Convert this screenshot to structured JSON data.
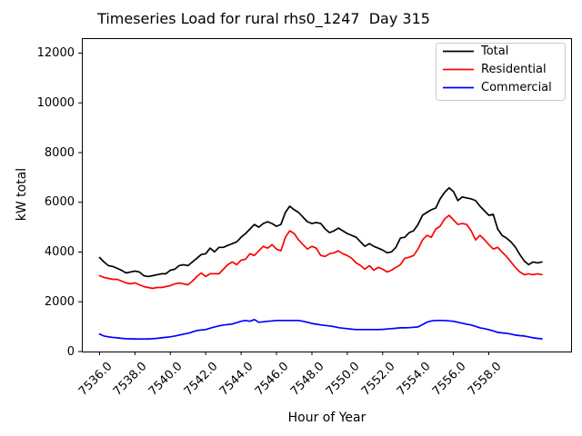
{
  "chart_data": {
    "type": "line",
    "title": "Timeseries Load for rural rhs0_1247  Day 315",
    "xlabel": "Hour of Year",
    "ylabel": "kW total",
    "xlim": [
      7535.0,
      7562.7
    ],
    "ylim": [
      0,
      12600
    ],
    "grid": false,
    "x_ticks": [
      7536,
      7538,
      7540,
      7542,
      7544,
      7546,
      7548,
      7550,
      7552,
      7554,
      7556,
      7558
    ],
    "x_tick_labels": [
      "7536.0",
      "7538.0",
      "7540.0",
      "7542.0",
      "7544.0",
      "7546.0",
      "7548.0",
      "7550.0",
      "7552.0",
      "7554.0",
      "7556.0",
      "7558.0"
    ],
    "y_ticks": [
      0,
      2000,
      4000,
      6000,
      8000,
      10000,
      12000
    ],
    "y_tick_labels": [
      "0",
      "2000",
      "4000",
      "6000",
      "8000",
      "10000",
      "12000"
    ],
    "legend": {
      "position": "upper right",
      "entries": [
        {
          "label": "Total",
          "color": "#000000"
        },
        {
          "label": "Residential",
          "color": "#ff0000"
        },
        {
          "label": "Commercial",
          "color": "#0000ff"
        }
      ]
    },
    "x": [
      7536.0,
      7536.25,
      7536.5,
      7536.75,
      7537.0,
      7537.25,
      7537.5,
      7537.75,
      7538.0,
      7538.25,
      7538.5,
      7538.75,
      7539.0,
      7539.25,
      7539.5,
      7539.75,
      7540.0,
      7540.25,
      7540.5,
      7540.75,
      7541.0,
      7541.25,
      7541.5,
      7541.75,
      7542.0,
      7542.25,
      7542.5,
      7542.75,
      7543.0,
      7543.25,
      7543.5,
      7543.75,
      7544.0,
      7544.25,
      7544.5,
      7544.75,
      7545.0,
      7545.25,
      7545.5,
      7545.75,
      7546.0,
      7546.25,
      7546.5,
      7546.75,
      7547.0,
      7547.25,
      7547.5,
      7547.75,
      7548.0,
      7548.25,
      7548.5,
      7548.75,
      7549.0,
      7549.25,
      7549.5,
      7549.75,
      7550.0,
      7550.25,
      7550.5,
      7550.75,
      7551.0,
      7551.25,
      7551.5,
      7551.75,
      7552.0,
      7552.25,
      7552.5,
      7552.75,
      7553.0,
      7553.25,
      7553.5,
      7553.75,
      7554.0,
      7554.25,
      7554.5,
      7554.75,
      7555.0,
      7555.25,
      7555.5,
      7555.75,
      7556.0,
      7556.25,
      7556.5,
      7556.75,
      7557.0,
      7557.25,
      7557.5,
      7557.75,
      7558.0,
      7558.25,
      7558.5,
      7558.75,
      7559.0,
      7559.25,
      7559.5,
      7559.75,
      7560.0,
      7560.25,
      7560.5,
      7560.75,
      7561.0
    ],
    "series": [
      {
        "name": "Total",
        "color": "#000000",
        "values": [
          3780,
          3600,
          3455,
          3420,
          3345,
          3260,
          3160,
          3200,
          3235,
          3200,
          3050,
          3015,
          3050,
          3090,
          3125,
          3125,
          3270,
          3310,
          3455,
          3490,
          3455,
          3600,
          3750,
          3900,
          3935,
          4155,
          4005,
          4190,
          4190,
          4265,
          4340,
          4410,
          4595,
          4745,
          4925,
          5110,
          5000,
          5145,
          5220,
          5145,
          5035,
          5110,
          5590,
          5845,
          5700,
          5590,
          5400,
          5220,
          5145,
          5185,
          5145,
          4925,
          4780,
          4855,
          4965,
          4855,
          4745,
          4670,
          4595,
          4410,
          4230,
          4340,
          4230,
          4155,
          4080,
          3970,
          4005,
          4190,
          4560,
          4595,
          4780,
          4855,
          5110,
          5480,
          5590,
          5700,
          5770,
          6140,
          6395,
          6580,
          6435,
          6065,
          6215,
          6175,
          6140,
          6065,
          5845,
          5660,
          5480,
          5515,
          4925,
          4670,
          4560,
          4410,
          4200,
          3900,
          3640,
          3490,
          3600,
          3565,
          3600
        ]
      },
      {
        "name": "Residential",
        "color": "#ff0000",
        "values": [
          3050,
          2980,
          2940,
          2905,
          2905,
          2830,
          2760,
          2720,
          2760,
          2685,
          2610,
          2575,
          2540,
          2575,
          2575,
          2610,
          2650,
          2720,
          2755,
          2720,
          2685,
          2830,
          3015,
          3160,
          3015,
          3125,
          3125,
          3125,
          3310,
          3490,
          3600,
          3490,
          3675,
          3710,
          3935,
          3860,
          4045,
          4230,
          4155,
          4300,
          4120,
          4045,
          4595,
          4855,
          4745,
          4485,
          4300,
          4120,
          4230,
          4155,
          3860,
          3825,
          3935,
          3970,
          4045,
          3935,
          3860,
          3750,
          3565,
          3455,
          3310,
          3455,
          3270,
          3385,
          3310,
          3200,
          3270,
          3385,
          3490,
          3750,
          3790,
          3860,
          4120,
          4485,
          4670,
          4595,
          4925,
          5035,
          5330,
          5480,
          5295,
          5110,
          5145,
          5110,
          4855,
          4485,
          4670,
          4500,
          4300,
          4120,
          4190,
          4000,
          3820,
          3600,
          3385,
          3200,
          3090,
          3125,
          3090,
          3125,
          3090
        ]
      },
      {
        "name": "Commercial",
        "color": "#0000ff",
        "values": [
          700,
          625,
          590,
          565,
          550,
          530,
          515,
          510,
          508,
          505,
          505,
          508,
          515,
          530,
          550,
          570,
          590,
          625,
          660,
          700,
          735,
          790,
          845,
          865,
          885,
          940,
          990,
          1030,
          1065,
          1085,
          1105,
          1160,
          1215,
          1250,
          1215,
          1285,
          1175,
          1195,
          1215,
          1230,
          1250,
          1250,
          1250,
          1250,
          1250,
          1250,
          1215,
          1175,
          1130,
          1100,
          1070,
          1050,
          1030,
          1000,
          960,
          940,
          920,
          900,
          885,
          885,
          885,
          885,
          885,
          885,
          890,
          905,
          920,
          935,
          955,
          955,
          960,
          975,
          990,
          1080,
          1175,
          1230,
          1250,
          1250,
          1250,
          1230,
          1215,
          1175,
          1140,
          1100,
          1065,
          1010,
          955,
          920,
          880,
          830,
          772,
          750,
          735,
          700,
          662,
          640,
          625,
          590,
          551,
          530,
          510
        ]
      }
    ]
  }
}
